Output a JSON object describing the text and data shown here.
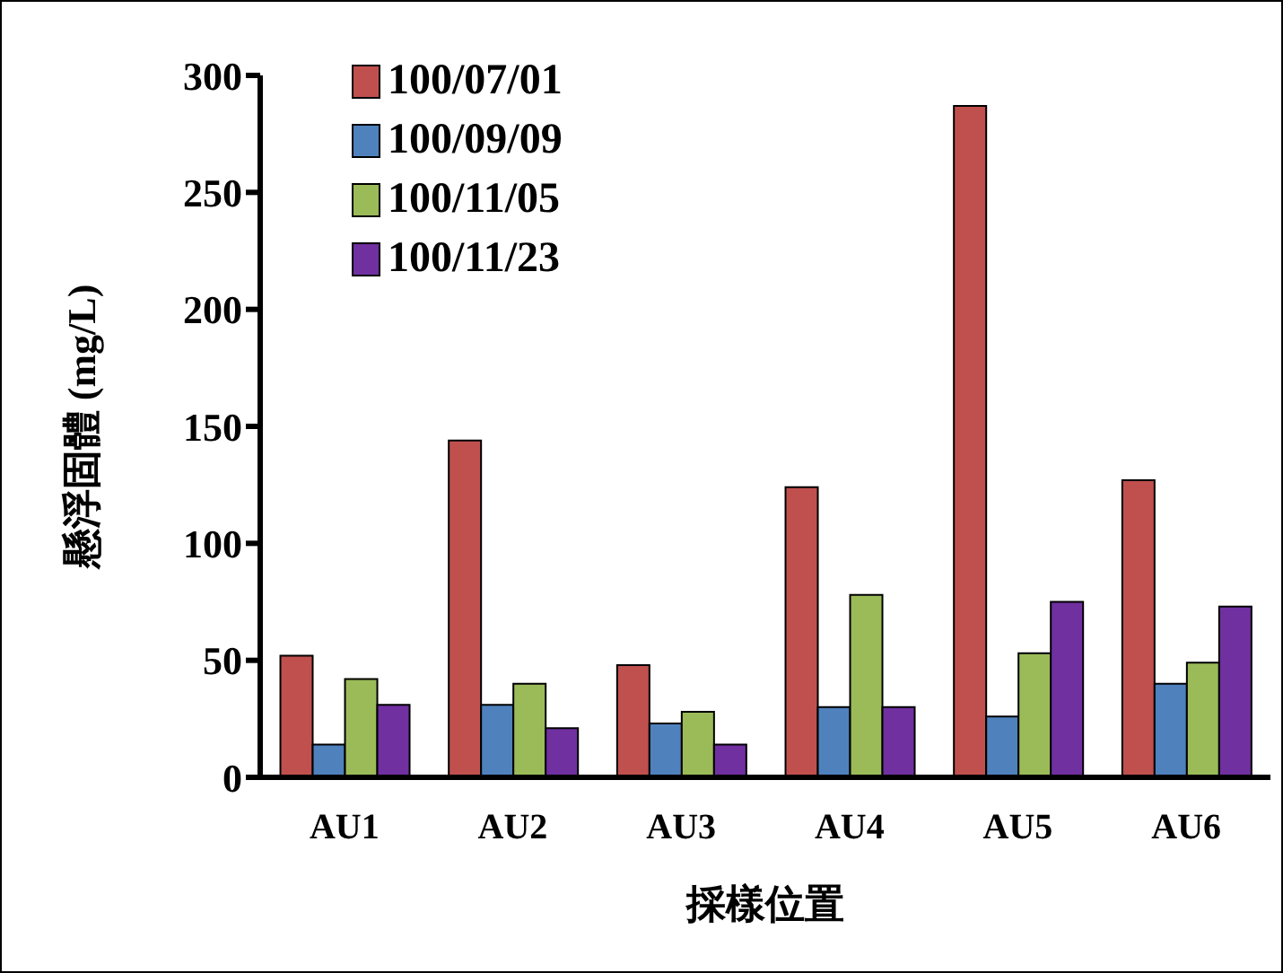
{
  "chart_data": {
    "type": "bar",
    "xlabel": "採樣位置",
    "ylabel": "懸浮固體 (mg/L)",
    "categories": [
      "AU1",
      "AU2",
      "AU3",
      "AU4",
      "AU5",
      "AU6"
    ],
    "series": [
      {
        "name": "100/07/01",
        "color": "#c0504d",
        "values": [
          52,
          144,
          48,
          124,
          287,
          127
        ]
      },
      {
        "name": "100/09/09",
        "color": "#4f81bd",
        "values": [
          14,
          31,
          23,
          30,
          26,
          40
        ]
      },
      {
        "name": "100/11/05",
        "color": "#9bbb59",
        "values": [
          42,
          40,
          28,
          78,
          53,
          49
        ]
      },
      {
        "name": "100/11/23",
        "color": "#7030a0",
        "values": [
          31,
          21,
          14,
          30,
          75,
          73
        ]
      }
    ],
    "ylim": [
      0,
      300
    ],
    "yticks": [
      0,
      50,
      100,
      150,
      200,
      250,
      300
    ],
    "legend": "top left",
    "grid": false
  }
}
